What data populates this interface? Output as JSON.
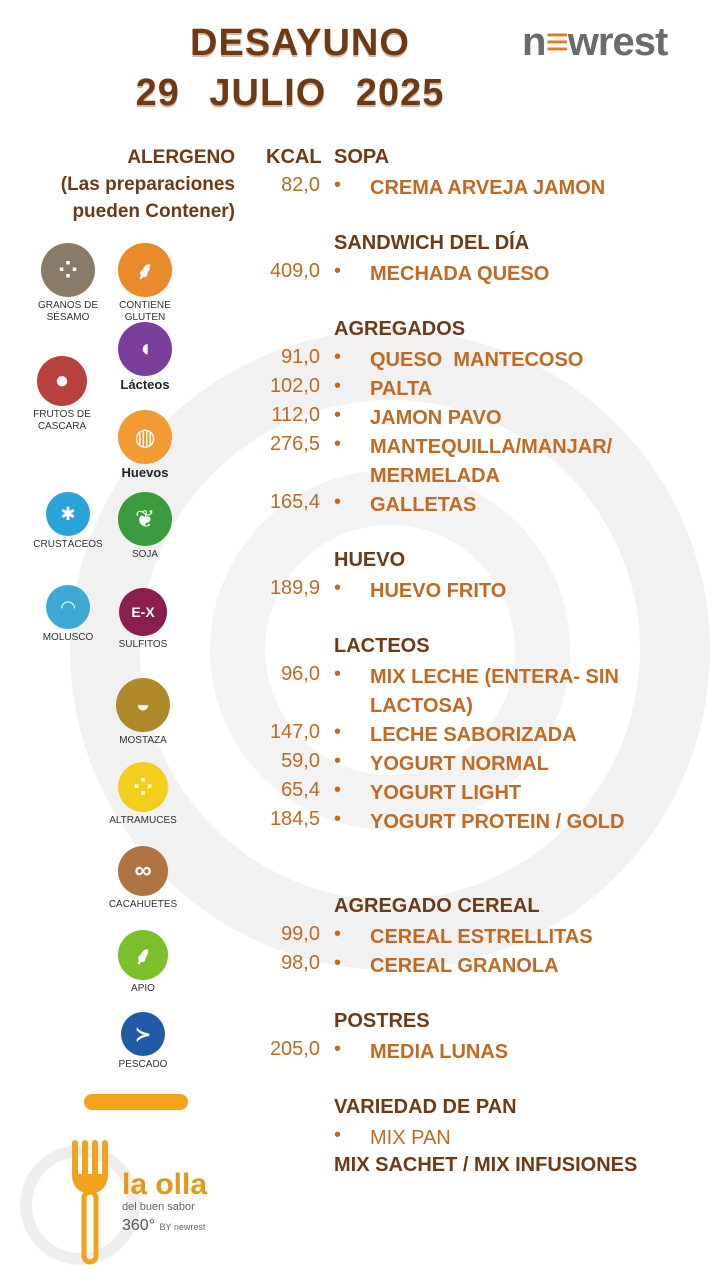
{
  "header": {
    "title_line1": "DESAYUNO",
    "title_line2": "29 JULIO 2025",
    "logo_prefix": "n",
    "logo_e": "≡",
    "logo_suffix": "wrest"
  },
  "allergens": {
    "heading_line1": "ALERGENO",
    "heading_line2": "(Las preparaciones",
    "heading_line3": "pueden Contener)",
    "items": [
      {
        "label": "GRANOS DE SÉSAMO",
        "color": "#8a7a68",
        "icon": "sesame-icon"
      },
      {
        "label": "CONTIENE GLUTEN",
        "color": "#e98b2a",
        "icon": "wheat-icon"
      },
      {
        "label": "Lácteos",
        "color": "#7a3f9b",
        "icon": "milk-jug-icon"
      },
      {
        "label": "FRUTOS DE CASCARA",
        "color": "#b9413d",
        "icon": "nut-icon"
      },
      {
        "label": "Huevos",
        "color": "#f29a34",
        "icon": "eggs-icon"
      },
      {
        "label": "CRUSTÁCEOS",
        "color": "#2aa4d8",
        "icon": "crab-icon"
      },
      {
        "label": "SOJA",
        "color": "#3a9a3e",
        "icon": "soy-icon"
      },
      {
        "label": "MOLUSCO",
        "color": "#3ea8d6",
        "icon": "shell-icon"
      },
      {
        "label": "SULFITOS",
        "color": "#8a1f4f",
        "icon": "sulphite-icon"
      },
      {
        "label": "MOSTAZA",
        "color": "#b0892a",
        "icon": "mustard-icon"
      },
      {
        "label": "ALTRAMUCES",
        "color": "#f2cf1f",
        "icon": "lupin-icon"
      },
      {
        "label": "CACAHUETES",
        "color": "#b07342",
        "icon": "peanut-icon"
      },
      {
        "label": "APIO",
        "color": "#7bbf2a",
        "icon": "celery-icon"
      },
      {
        "label": "PESCADO",
        "color": "#1f5aa8",
        "icon": "fish-icon"
      }
    ]
  },
  "menu": {
    "kcal_heading": "KCAL",
    "bullet": "•",
    "sections": {
      "sopa": "SOPA",
      "sandwich": "SANDWICH DEL DÍA",
      "agregados": "AGREGADOS",
      "huevo": "HUEVO",
      "lacteos": "LACTEOS",
      "cereal": "AGREGADO CEREAL",
      "postres": "POSTRES",
      "pan": "VARIEDAD DE PAN"
    },
    "items": {
      "crema": {
        "kcal": "82,0",
        "name": "CREMA ARVEJA JAMON"
      },
      "mechada": {
        "kcal": "409,0",
        "name": "MECHADA QUESO"
      },
      "queso": {
        "kcal": "91,0",
        "name": "QUESO  MANTECOSO"
      },
      "palta": {
        "kcal": "102,0",
        "name": "PALTA"
      },
      "jamon": {
        "kcal": "112,0",
        "name": "JAMON PAVO"
      },
      "mantequilla": {
        "kcal": "276,5",
        "name": "MANTEQUILLA/MANJAR/ MERMELADA"
      },
      "galletas": {
        "kcal": "165,4",
        "name": "GALLETAS"
      },
      "huevo_frito": {
        "kcal": "189,9",
        "name": "HUEVO FRITO"
      },
      "mix_leche": {
        "kcal": "96,0",
        "name": "MIX LECHE (ENTERA- SIN LACTOSA)"
      },
      "leche_sab": {
        "kcal": "147,0",
        "name": "LECHE SABORIZADA"
      },
      "yog_normal": {
        "kcal": "59,0",
        "name": "YOGURT NORMAL"
      },
      "yog_light": {
        "kcal": "65,4",
        "name": "YOGURT LIGHT"
      },
      "yog_protein": {
        "kcal": "184,5",
        "name": "YOGURT PROTEIN / GOLD"
      },
      "estrellitas": {
        "kcal": "99,0",
        "name": "CEREAL ESTRELLITAS"
      },
      "granola": {
        "kcal": "98,0",
        "name": "CEREAL GRANOLA"
      },
      "media_lunas": {
        "kcal": "205,0",
        "name": "MEDIA LUNAS"
      },
      "mix_pan": {
        "kcal": "",
        "name": "MIX PAN"
      }
    },
    "footer_line": "MIX SACHET / MIX INFUSIONES"
  },
  "brand": {
    "name": "la olla",
    "tagline": "del buen sabor",
    "sub_360": "360°",
    "sub_by": "BY newrest"
  }
}
